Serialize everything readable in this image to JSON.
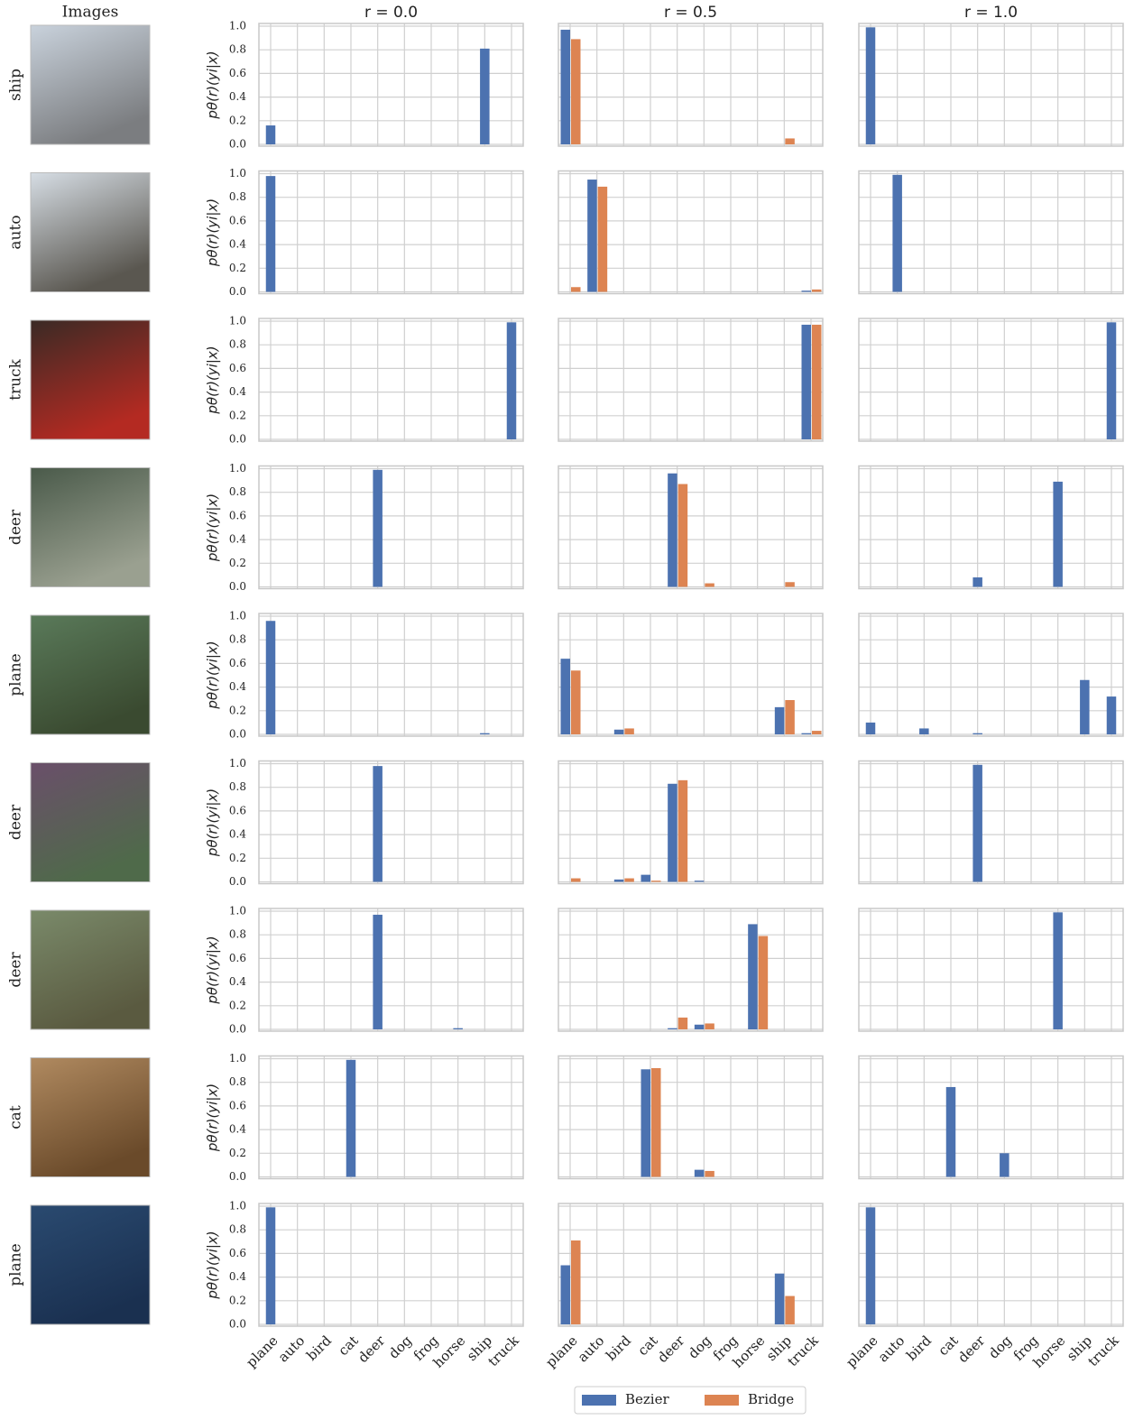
{
  "chart_data": {
    "type": "bar",
    "image_header": "Images",
    "column_titles": [
      "r = 0.0",
      "r = 0.5",
      "r = 1.0"
    ],
    "ylabel": "pθ(r)(yi|x)",
    "categories": [
      "plane",
      "auto",
      "bird",
      "cat",
      "deer",
      "dog",
      "frog",
      "horse",
      "ship",
      "truck"
    ],
    "series": [
      {
        "name": "Bezier",
        "color": "#4c72b0"
      },
      {
        "name": "Bridge",
        "color": "#dd8452"
      }
    ],
    "ylim": [
      0,
      1
    ],
    "yticks": [
      {
        "value": 0,
        "label": "0.0"
      },
      0.2,
      0.4,
      0.6,
      0.8,
      {
        "value": 1,
        "label": "1.0"
      }
    ],
    "grid": true,
    "rows": [
      {
        "label": "ship",
        "panels": [
          {
            "values": [
              [
                0.16,
                0,
                0,
                0,
                0,
                0,
                0,
                0,
                0.81,
                0
              ]
            ]
          },
          {
            "values": [
              [
                0.97,
                0,
                0,
                0,
                0,
                0,
                0,
                0,
                0,
                0
              ],
              [
                0.89,
                0,
                0,
                0,
                0,
                0,
                0,
                0,
                0.05,
                0
              ]
            ]
          },
          {
            "values": [
              [
                0.99,
                0,
                0,
                0,
                0,
                0,
                0,
                0,
                0,
                0
              ]
            ]
          }
        ]
      },
      {
        "label": "auto",
        "panels": [
          {
            "values": [
              [
                0.98,
                0,
                0,
                0,
                0,
                0,
                0,
                0,
                0,
                0
              ]
            ]
          },
          {
            "values": [
              [
                0,
                0.95,
                0,
                0,
                0,
                0,
                0,
                0,
                0,
                0.01
              ],
              [
                0.04,
                0.89,
                0,
                0,
                0,
                0,
                0,
                0,
                0,
                0.02
              ]
            ]
          },
          {
            "values": [
              [
                0,
                0.99,
                0,
                0,
                0,
                0,
                0,
                0,
                0,
                0
              ]
            ]
          }
        ]
      },
      {
        "label": "truck",
        "panels": [
          {
            "values": [
              [
                0,
                0,
                0,
                0,
                0,
                0,
                0,
                0,
                0,
                0.99
              ]
            ]
          },
          {
            "values": [
              [
                0,
                0,
                0,
                0,
                0,
                0,
                0,
                0,
                0,
                0.97
              ],
              [
                0,
                0,
                0,
                0,
                0,
                0,
                0,
                0,
                0,
                0.97
              ]
            ]
          },
          {
            "values": [
              [
                0,
                0,
                0,
                0,
                0,
                0,
                0,
                0,
                0,
                0.99
              ]
            ]
          }
        ]
      },
      {
        "label": "deer",
        "panels": [
          {
            "values": [
              [
                0,
                0,
                0,
                0,
                0.99,
                0,
                0,
                0,
                0,
                0
              ]
            ]
          },
          {
            "values": [
              [
                0,
                0,
                0,
                0,
                0.96,
                0,
                0,
                0,
                0,
                0
              ],
              [
                0,
                0,
                0,
                0,
                0.87,
                0.03,
                0,
                0,
                0.04,
                0
              ]
            ]
          },
          {
            "values": [
              [
                0,
                0,
                0,
                0,
                0.08,
                0,
                0,
                0.89,
                0,
                0
              ]
            ]
          }
        ]
      },
      {
        "label": "plane",
        "panels": [
          {
            "values": [
              [
                0.96,
                0,
                0,
                0,
                0,
                0,
                0,
                0,
                0.01,
                0
              ]
            ]
          },
          {
            "values": [
              [
                0.64,
                0,
                0.04,
                0,
                0,
                0,
                0,
                0,
                0.23,
                0.01
              ],
              [
                0.54,
                0,
                0.05,
                0,
                0,
                0,
                0,
                0,
                0.29,
                0.03
              ]
            ]
          },
          {
            "values": [
              [
                0.1,
                0,
                0.05,
                0,
                0.01,
                0,
                0,
                0,
                0.46,
                0.32
              ]
            ]
          }
        ]
      },
      {
        "label": "deer",
        "panels": [
          {
            "values": [
              [
                0,
                0,
                0,
                0,
                0.98,
                0,
                0,
                0,
                0,
                0
              ]
            ]
          },
          {
            "values": [
              [
                0,
                0,
                0.02,
                0.06,
                0.83,
                0.01,
                0,
                0,
                0,
                0
              ],
              [
                0.03,
                0,
                0.03,
                0.01,
                0.86,
                0,
                0,
                0,
                0,
                0
              ]
            ]
          },
          {
            "values": [
              [
                0,
                0,
                0,
                0,
                0.99,
                0,
                0,
                0,
                0,
                0
              ]
            ]
          }
        ]
      },
      {
        "label": "deer",
        "panels": [
          {
            "values": [
              [
                0,
                0,
                0,
                0,
                0.97,
                0,
                0,
                0.01,
                0,
                0
              ]
            ]
          },
          {
            "values": [
              [
                0,
                0,
                0,
                0,
                0.01,
                0.04,
                0,
                0.89,
                0,
                0
              ],
              [
                0,
                0,
                0,
                0,
                0.1,
                0.05,
                0,
                0.79,
                0,
                0
              ]
            ]
          },
          {
            "values": [
              [
                0,
                0,
                0,
                0,
                0,
                0,
                0,
                0.99,
                0,
                0
              ]
            ]
          }
        ]
      },
      {
        "label": "cat",
        "panels": [
          {
            "values": [
              [
                0,
                0,
                0,
                0.99,
                0,
                0,
                0,
                0,
                0,
                0
              ]
            ]
          },
          {
            "values": [
              [
                0,
                0,
                0,
                0.91,
                0,
                0.06,
                0,
                0,
                0,
                0
              ],
              [
                0,
                0,
                0,
                0.92,
                0,
                0.05,
                0,
                0,
                0,
                0
              ]
            ]
          },
          {
            "values": [
              [
                0,
                0,
                0,
                0.76,
                0,
                0.2,
                0,
                0,
                0,
                0
              ]
            ]
          }
        ]
      },
      {
        "label": "plane",
        "panels": [
          {
            "values": [
              [
                0.99,
                0,
                0,
                0,
                0,
                0,
                0,
                0,
                0,
                0
              ]
            ]
          },
          {
            "values": [
              [
                0.5,
                0,
                0,
                0,
                0,
                0,
                0,
                0,
                0.43,
                0
              ],
              [
                0.71,
                0,
                0,
                0,
                0,
                0,
                0,
                0,
                0.24,
                0
              ]
            ]
          },
          {
            "values": [
              [
                0.99,
                0,
                0,
                0,
                0,
                0,
                0,
                0,
                0,
                0
              ]
            ]
          }
        ]
      }
    ]
  }
}
